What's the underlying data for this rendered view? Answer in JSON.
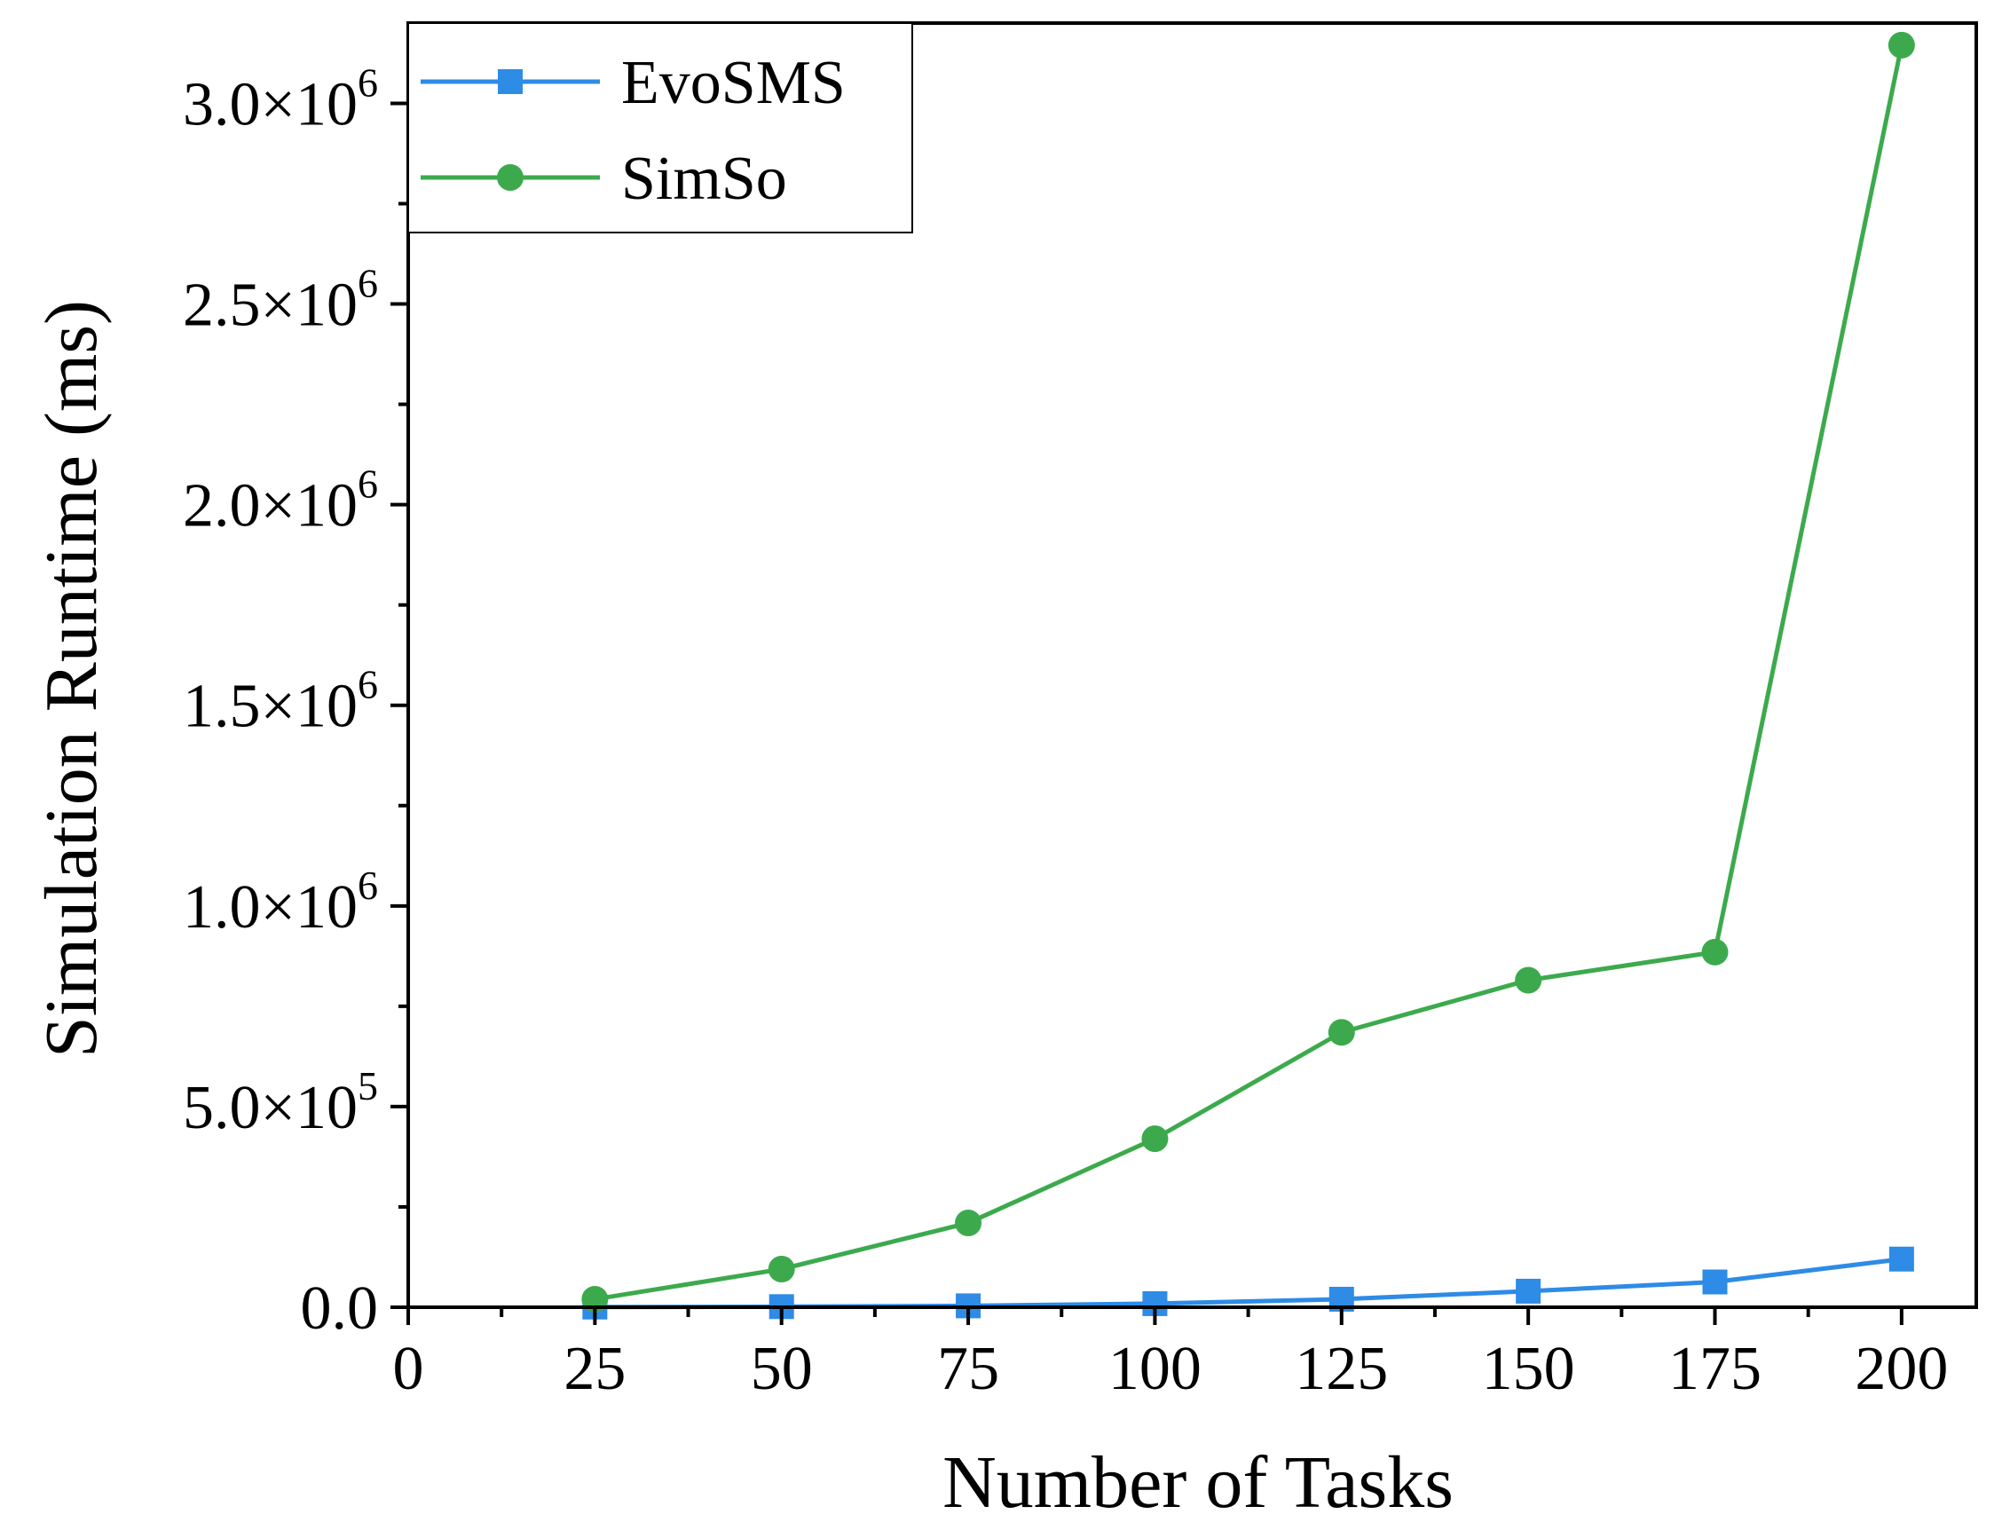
{
  "chart_data": {
    "type": "line",
    "title": "",
    "xlabel": "Number of Tasks",
    "ylabel": "Simulation Runtime (ms)",
    "xlim": [
      0,
      210
    ],
    "ylim": [
      0,
      3200000
    ],
    "x_ticks": [
      0,
      25,
      50,
      75,
      100,
      125,
      150,
      175,
      200
    ],
    "y_ticks": [
      {
        "value": 0,
        "mantissa": "0.0",
        "exponent": ""
      },
      {
        "value": 500000,
        "mantissa": "5.0×10",
        "exponent": "5"
      },
      {
        "value": 1000000,
        "mantissa": "1.0×10",
        "exponent": "6"
      },
      {
        "value": 1500000,
        "mantissa": "1.5×10",
        "exponent": "6"
      },
      {
        "value": 2000000,
        "mantissa": "2.0×10",
        "exponent": "6"
      },
      {
        "value": 2500000,
        "mantissa": "2.5×10",
        "exponent": "6"
      },
      {
        "value": 3000000,
        "mantissa": "3.0×10",
        "exponent": "6"
      }
    ],
    "grid": false,
    "legend_position": "top-left",
    "x": [
      25,
      50,
      75,
      100,
      125,
      150,
      175,
      200
    ],
    "series": [
      {
        "name": "EvoSMS",
        "color": "#2e8be6",
        "marker": "square",
        "values": [
          500,
          1500,
          3500,
          9000,
          20000,
          40000,
          63000,
          120000
        ]
      },
      {
        "name": "SimSo",
        "color": "#3caa4c",
        "marker": "circle",
        "values": [
          20000,
          95000,
          210000,
          420000,
          685000,
          815000,
          885000,
          3145000
        ]
      }
    ]
  }
}
